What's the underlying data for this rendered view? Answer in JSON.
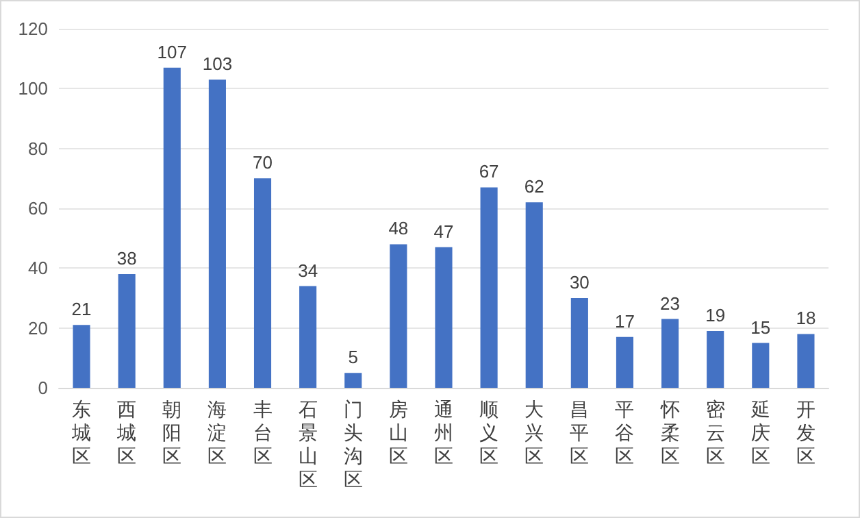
{
  "chart_data": {
    "type": "bar",
    "categories": [
      "东城区",
      "西城区",
      "朝阳区",
      "海淀区",
      "丰台区",
      "石景山区",
      "门头沟区",
      "房山区",
      "通州区",
      "顺义区",
      "大兴区",
      "昌平区",
      "平谷区",
      "怀柔区",
      "密云区",
      "延庆区",
      "开发区"
    ],
    "values": [
      21,
      38,
      107,
      103,
      70,
      34,
      5,
      48,
      47,
      67,
      62,
      30,
      17,
      23,
      19,
      15,
      18
    ],
    "color": "#4472c4",
    "ylim": [
      0,
      120
    ],
    "yticks": [
      0,
      20,
      40,
      60,
      80,
      100,
      120
    ],
    "grid": "y",
    "data_labels": true
  }
}
